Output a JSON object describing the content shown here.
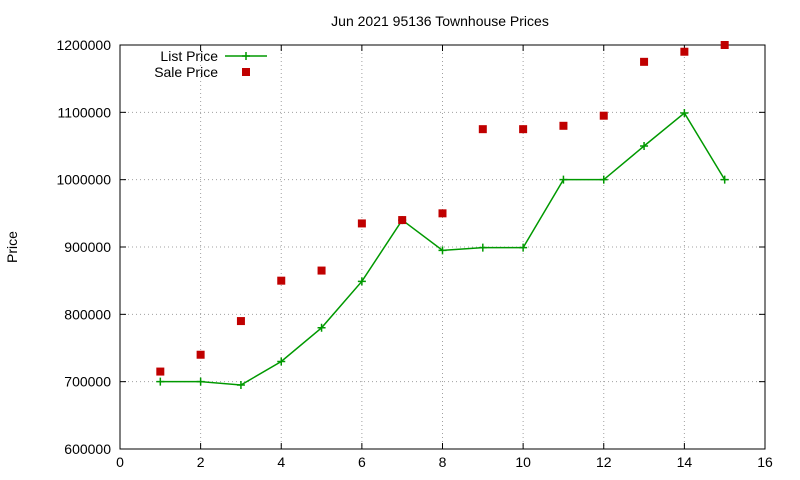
{
  "chart_data": {
    "type": "line",
    "title": "Jun 2021 95136 Townhouse Prices",
    "xlabel": "",
    "ylabel": "Price",
    "xlim": [
      0,
      16
    ],
    "ylim": [
      600000,
      1200000
    ],
    "xticks": [
      0,
      2,
      4,
      6,
      8,
      10,
      12,
      14,
      16
    ],
    "yticks": [
      600000,
      700000,
      800000,
      900000,
      1000000,
      1100000,
      1200000
    ],
    "grid": true,
    "legend_position": "top-left",
    "series": [
      {
        "name": "List Price",
        "style": "linespoints",
        "marker": "plus",
        "color": "#009900",
        "x": [
          1,
          2,
          3,
          4,
          5,
          6,
          7,
          8,
          9,
          10,
          11,
          12,
          13,
          14,
          15
        ],
        "y": [
          700000,
          700000,
          695000,
          730000,
          780000,
          849000,
          940000,
          895000,
          899000,
          899000,
          1000000,
          1000000,
          1050000,
          1099000,
          1000000
        ]
      },
      {
        "name": "Sale Price",
        "style": "points",
        "marker": "square",
        "color": "#c00000",
        "x": [
          1,
          2,
          3,
          4,
          5,
          6,
          7,
          8,
          9,
          10,
          11,
          12,
          13,
          14,
          15
        ],
        "y": [
          715000,
          740000,
          790000,
          850000,
          865000,
          935000,
          940000,
          950000,
          1075000,
          1075000,
          1080000,
          1095000,
          1175000,
          1190000,
          1200000
        ]
      }
    ]
  }
}
